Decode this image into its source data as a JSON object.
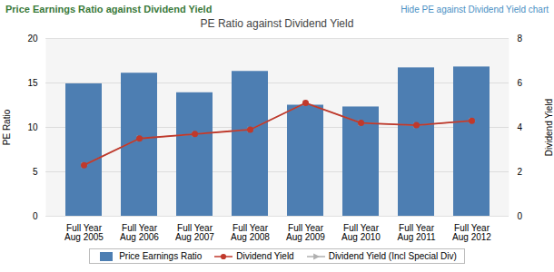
{
  "chart_data": {
    "type": "bar",
    "title": "PE Ratio against Dividend Yield",
    "annotations": [
      "Price Earnings Ratio against Dividend Yield",
      "Hide PE against Dividend Yield chart"
    ],
    "categories": [
      "Full Year\nAug 2005",
      "Full Year\nAug 2006",
      "Full Year\nAug 2007",
      "Full Year\nAug 2008",
      "Full Year\nAug 2009",
      "Full Year\nAug 2010",
      "Full Year\nAug 2011",
      "Full Year\nAug 2012"
    ],
    "series": [
      {
        "name": "Price Earnings Ratio",
        "type": "bar",
        "color": "#4d7eb2",
        "values": [
          14.9,
          16.1,
          13.9,
          16.3,
          12.5,
          12.3,
          16.7,
          16.8
        ]
      },
      {
        "name": "Dividend Yield",
        "type": "line",
        "axis": "y2",
        "color": "#c0392b",
        "marker": "circle",
        "values": [
          2.3,
          3.5,
          3.7,
          3.9,
          5.1,
          4.2,
          4.1,
          4.3
        ]
      },
      {
        "name": "Dividend Yield (Incl Special Div)",
        "type": "line",
        "axis": "y2",
        "color": "#b0b0b0",
        "marker": "triangle-right",
        "values": [
          2.3,
          3.5,
          3.7,
          3.9,
          5.1,
          4.2,
          4.1,
          4.3
        ]
      }
    ],
    "ylabel": "PE Ratio",
    "y2label": "Dividend Yield",
    "ylim": [
      0,
      20
    ],
    "yticks": [
      0,
      5,
      10,
      15,
      20
    ],
    "y2lim": [
      0,
      8
    ],
    "y2ticks": [
      0,
      2,
      4,
      6,
      8
    ],
    "grid": true,
    "legend": "bottom"
  }
}
